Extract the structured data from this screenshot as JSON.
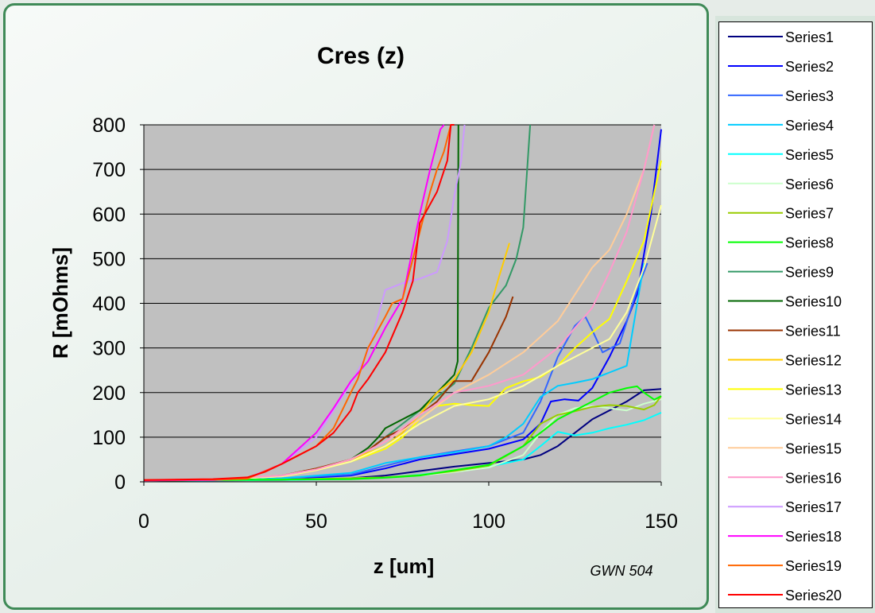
{
  "chart_data": {
    "type": "line",
    "title": "Cres (z)",
    "xlabel": "z [um]",
    "ylabel": "R [mOhms]",
    "xlim": [
      0,
      150
    ],
    "ylim": [
      0,
      800
    ],
    "xticks": [
      "0",
      "50",
      "100",
      "150"
    ],
    "yticks": [
      "0",
      "100",
      "200",
      "300",
      "400",
      "500",
      "600",
      "700",
      "800"
    ],
    "grid": "horizontal",
    "plot_background": "#c0c0c0",
    "legend_position": "right",
    "annotation": "GWN 504",
    "series": [
      {
        "name": "Series1",
        "color": "#000080",
        "x": [
          0,
          20,
          40,
          60,
          70,
          80,
          90,
          100,
          110,
          115,
          120,
          125,
          130,
          135,
          140,
          145,
          150
        ],
        "y": [
          2,
          3,
          4,
          8,
          14,
          24,
          34,
          42,
          50,
          60,
          80,
          110,
          140,
          160,
          180,
          205,
          208
        ]
      },
      {
        "name": "Series2",
        "color": "#0000ff",
        "x": [
          0,
          20,
          40,
          60,
          70,
          80,
          90,
          100,
          110,
          115,
          118,
          122,
          126,
          130,
          135,
          140,
          143,
          147,
          150
        ],
        "y": [
          3,
          4,
          6,
          14,
          30,
          50,
          62,
          74,
          95,
          130,
          180,
          185,
          182,
          210,
          280,
          360,
          420,
          600,
          790
        ]
      },
      {
        "name": "Series3",
        "color": "#3366ff",
        "x": [
          0,
          20,
          40,
          60,
          70,
          80,
          90,
          100,
          110,
          115,
          120,
          125,
          128,
          130,
          133,
          138,
          143,
          146
        ],
        "y": [
          4,
          5,
          8,
          16,
          36,
          55,
          68,
          80,
          110,
          180,
          280,
          350,
          370,
          340,
          290,
          310,
          430,
          490
        ]
      },
      {
        "name": "Series4",
        "color": "#00ccff",
        "x": [
          0,
          20,
          40,
          60,
          70,
          80,
          90,
          100,
          105,
          110,
          115,
          120,
          125,
          130,
          135,
          140,
          145
        ],
        "y": [
          4,
          5,
          8,
          20,
          42,
          55,
          66,
          80,
          100,
          130,
          190,
          215,
          222,
          230,
          245,
          260,
          490
        ]
      },
      {
        "name": "Series5",
        "color": "#00ffff",
        "x": [
          0,
          20,
          40,
          60,
          70,
          80,
          90,
          100,
          110,
          115,
          120,
          125,
          130,
          135,
          140,
          145,
          150
        ],
        "y": [
          2,
          3,
          4,
          6,
          10,
          16,
          24,
          34,
          50,
          80,
          112,
          104,
          110,
          120,
          128,
          138,
          155
        ]
      },
      {
        "name": "Series6",
        "color": "#ccffcc",
        "x": [
          0,
          20,
          40,
          60,
          70,
          80,
          90,
          100,
          110,
          115,
          120,
          125,
          130,
          135,
          140,
          145,
          150
        ],
        "y": [
          3,
          4,
          5,
          8,
          10,
          14,
          22,
          32,
          60,
          110,
          150,
          165,
          170,
          165,
          160,
          175,
          185
        ]
      },
      {
        "name": "Series7",
        "color": "#99cc00",
        "x": [
          0,
          20,
          40,
          60,
          70,
          80,
          90,
          100,
          110,
          115,
          120,
          125,
          130,
          135,
          140,
          145,
          148,
          150
        ],
        "y": [
          3,
          4,
          5,
          8,
          10,
          15,
          24,
          36,
          80,
          130,
          150,
          158,
          168,
          172,
          170,
          162,
          172,
          192
        ]
      },
      {
        "name": "Series8",
        "color": "#00ff00",
        "x": [
          0,
          20,
          40,
          60,
          70,
          80,
          90,
          100,
          110,
          115,
          120,
          125,
          130,
          135,
          140,
          143,
          145,
          148,
          150
        ],
        "y": [
          3,
          4,
          5,
          6,
          9,
          14,
          26,
          38,
          80,
          110,
          140,
          160,
          180,
          200,
          210,
          214,
          200,
          184,
          192
        ]
      },
      {
        "name": "Series9",
        "color": "#339966",
        "x": [
          0,
          20,
          40,
          50,
          60,
          65,
          70,
          75,
          80,
          85,
          90,
          95,
          100,
          105,
          108,
          110,
          112
        ],
        "y": [
          3,
          5,
          12,
          28,
          50,
          70,
          100,
          130,
          160,
          190,
          220,
          300,
          390,
          440,
          500,
          570,
          800
        ]
      },
      {
        "name": "Series10",
        "color": "#006600",
        "x": [
          0,
          20,
          40,
          50,
          60,
          65,
          68,
          70,
          75,
          80,
          85,
          90,
          91,
          91.2
        ],
        "y": [
          2,
          4,
          12,
          28,
          50,
          76,
          100,
          120,
          140,
          160,
          200,
          240,
          270,
          800
        ]
      },
      {
        "name": "Series11",
        "color": "#993300",
        "x": [
          0,
          20,
          40,
          50,
          60,
          65,
          70,
          75,
          80,
          85,
          90,
          95,
          100,
          105,
          107
        ],
        "y": [
          3,
          5,
          14,
          30,
          50,
          70,
          100,
          118,
          150,
          180,
          226,
          226,
          290,
          370,
          415
        ]
      },
      {
        "name": "Series12",
        "color": "#ffcc00",
        "x": [
          0,
          20,
          40,
          50,
          60,
          70,
          75,
          80,
          85,
          90,
          95,
          100,
          103,
          106
        ],
        "y": [
          3,
          5,
          12,
          26,
          50,
          80,
          110,
          150,
          200,
          230,
          290,
          380,
          460,
          535
        ]
      },
      {
        "name": "Series13",
        "color": "#ffff00",
        "x": [
          0,
          20,
          40,
          50,
          60,
          70,
          75,
          80,
          85,
          90,
          95,
          100,
          105,
          110,
          115,
          120,
          125,
          130,
          135,
          140,
          145,
          150
        ],
        "y": [
          3,
          5,
          12,
          26,
          45,
          74,
          100,
          140,
          170,
          175,
          172,
          170,
          210,
          225,
          235,
          260,
          300,
          335,
          365,
          450,
          540,
          720
        ]
      },
      {
        "name": "Series14",
        "color": "#ffff99",
        "x": [
          0,
          20,
          40,
          50,
          60,
          70,
          80,
          90,
          100,
          110,
          120,
          130,
          135,
          140,
          145,
          150
        ],
        "y": [
          3,
          5,
          12,
          26,
          45,
          80,
          130,
          170,
          185,
          215,
          260,
          300,
          320,
          380,
          480,
          620
        ]
      },
      {
        "name": "Series15",
        "color": "#ffcc99",
        "x": [
          0,
          20,
          40,
          50,
          60,
          70,
          80,
          90,
          100,
          110,
          120,
          125,
          130,
          135,
          140,
          145,
          148
        ],
        "y": [
          4,
          6,
          14,
          28,
          50,
          90,
          140,
          200,
          240,
          290,
          360,
          420,
          480,
          520,
          600,
          700,
          800
        ]
      },
      {
        "name": "Series16",
        "color": "#ff99cc",
        "x": [
          0,
          20,
          40,
          50,
          60,
          70,
          80,
          90,
          100,
          110,
          120,
          130,
          135,
          140,
          145,
          148
        ],
        "y": [
          4,
          6,
          14,
          28,
          50,
          90,
          150,
          200,
          215,
          240,
          300,
          390,
          470,
          560,
          700,
          800
        ]
      },
      {
        "name": "Series17",
        "color": "#cc99ff",
        "x": [
          0,
          20,
          30,
          40,
          50,
          55,
          60,
          65,
          70,
          75,
          80,
          85,
          88,
          90,
          92,
          93
        ],
        "y": [
          3,
          4,
          8,
          40,
          100,
          160,
          220,
          290,
          430,
          445,
          455,
          470,
          540,
          640,
          720,
          800
        ]
      },
      {
        "name": "Series18",
        "color": "#ff00ff",
        "x": [
          0,
          20,
          30,
          40,
          50,
          55,
          60,
          65,
          70,
          75,
          80,
          83,
          85,
          86,
          87
        ],
        "y": [
          3,
          4,
          8,
          40,
          110,
          165,
          225,
          270,
          345,
          410,
          600,
          700,
          760,
          790,
          800
        ]
      },
      {
        "name": "Series19",
        "color": "#ff6600",
        "x": [
          0,
          20,
          30,
          40,
          50,
          55,
          60,
          62,
          65,
          70,
          72,
          75,
          80,
          83,
          85,
          87,
          89,
          90
        ],
        "y": [
          4,
          5,
          7,
          40,
          80,
          120,
          200,
          230,
          300,
          370,
          400,
          410,
          560,
          650,
          700,
          740,
          800,
          800
        ]
      },
      {
        "name": "Series20",
        "color": "#ff0000",
        "x": [
          0,
          20,
          30,
          35,
          40,
          45,
          50,
          55,
          60,
          62,
          65,
          70,
          75,
          78,
          80,
          85,
          88,
          89,
          90
        ],
        "y": [
          4,
          6,
          10,
          22,
          40,
          60,
          80,
          110,
          160,
          200,
          230,
          290,
          380,
          450,
          580,
          650,
          720,
          800,
          800
        ]
      }
    ]
  }
}
